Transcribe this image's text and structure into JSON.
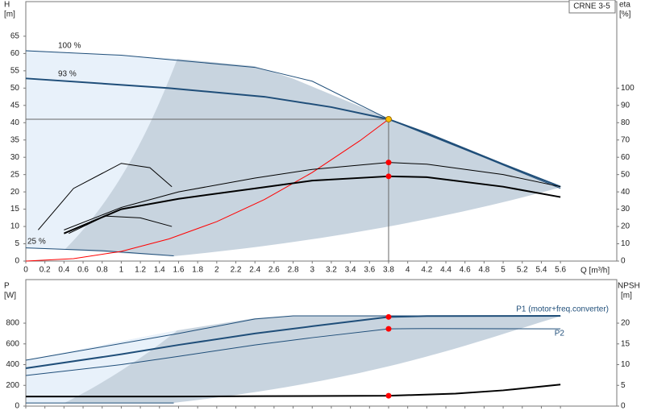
{
  "chart_data": [
    {
      "type": "line",
      "label": "CRNE 3-5",
      "ylabel": "H",
      "yunit": "[m]",
      "y2label": "eta",
      "y2unit": "[%]",
      "xlabel": "Q [m³/h]",
      "xlim": [
        0,
        6.19
      ],
      "ylim": [
        0,
        75
      ],
      "y2lim": [
        0,
        150
      ],
      "xticks": [
        0,
        0.2,
        0.4,
        0.6,
        0.8,
        1,
        1.2,
        1.4,
        1.6,
        1.8,
        2,
        2.2,
        2.4,
        2.6,
        2.8,
        3,
        3.2,
        3.4,
        3.6,
        3.8,
        4,
        4.2,
        4.4,
        4.6,
        4.8,
        5,
        5.2,
        5.4,
        5.6
      ],
      "yticks": [
        0,
        5,
        10,
        15,
        20,
        25,
        30,
        35,
        40,
        45,
        50,
        55,
        60,
        65
      ],
      "y2ticks": [
        0,
        10,
        20,
        30,
        40,
        50,
        60,
        70,
        80,
        90,
        100
      ],
      "series": [
        {
          "name": "100 %",
          "color": "#1f4e79",
          "width": 1,
          "x": [
            0,
            1,
            1.6,
            2.4,
            3,
            3.8,
            4.8,
            5.6
          ],
          "values": [
            60.8,
            59.5,
            58,
            56,
            52,
            41,
            30,
            21
          ]
        },
        {
          "name": "93 %",
          "color": "#1f4e79",
          "width": 2,
          "x": [
            0,
            1.5,
            2.5,
            3.2,
            3.8,
            4.2,
            5,
            5.6
          ],
          "values": [
            52.8,
            50,
            47.5,
            44.5,
            41,
            37,
            28,
            21.5
          ]
        },
        {
          "name": "25 %",
          "color": "#1f4e79",
          "width": 1,
          "x": [
            0,
            0.8,
            1.55
          ],
          "values": [
            3.8,
            3,
            1.5
          ]
        },
        {
          "color": "#ff0000",
          "width": 1,
          "x": [
            0,
            0.5,
            1,
            1.5,
            2,
            2.5,
            3,
            3.5,
            3.8
          ],
          "values": [
            0,
            0.7,
            2.8,
            6.4,
            11.4,
            17.8,
            25.6,
            34.8,
            41
          ]
        },
        {
          "color": "#000000",
          "width": 1,
          "axis": "y2",
          "x": [
            0.4,
            1,
            1.6,
            2.4,
            3,
            3.8,
            4.2,
            5,
            5.6
          ],
          "values": [
            18,
            31,
            40,
            48,
            53,
            57,
            56,
            50,
            43
          ]
        },
        {
          "color": "#000000",
          "width": 2,
          "axis": "y2",
          "x": [
            0.4,
            1,
            1.6,
            2.4,
            3,
            3.8,
            4.2,
            5,
            5.6
          ],
          "values": [
            16,
            30,
            36,
            42,
            46.5,
            49,
            48.5,
            43,
            37
          ]
        },
        {
          "color": "#000000",
          "width": 1,
          "axis": "y2",
          "x": [
            0.13,
            0.5,
            1,
            1.3,
            1.53
          ],
          "values": [
            18,
            42,
            56.5,
            54,
            43
          ]
        },
        {
          "color": "#000000",
          "width": 1,
          "axis": "y2",
          "x": [
            0.45,
            0.83,
            1.2,
            1.53
          ],
          "values": [
            16,
            26,
            25,
            20
          ]
        }
      ],
      "markers": [
        {
          "x": 3.8,
          "y": 41,
          "color": "#ffc000",
          "crosshair": true
        },
        {
          "x": 3.8,
          "y": 57,
          "color": "#ff0000",
          "axis": "y2"
        },
        {
          "x": 3.8,
          "y": 49,
          "color": "#ff0000",
          "axis": "y2"
        }
      ]
    },
    {
      "type": "line",
      "ylabel": "P",
      "yunit": "[W]",
      "y2label": "NPSH",
      "y2unit": "[m]",
      "xlim": [
        0,
        6.19
      ],
      "ylim": [
        0,
        1220
      ],
      "y2lim": [
        0,
        30.5
      ],
      "xticks": [
        0,
        0.2,
        0.4,
        0.6,
        0.8,
        1,
        1.2,
        1.4,
        1.6,
        1.8,
        2,
        2.2,
        2.4,
        2.6,
        2.8,
        3,
        3.2,
        3.4,
        3.6,
        3.8,
        4,
        4.2,
        4.4,
        4.6,
        4.8,
        5,
        5.2,
        5.4,
        5.6
      ],
      "yticks": [
        0,
        200,
        400,
        600,
        800
      ],
      "y2ticks": [
        0,
        5,
        10,
        15,
        20
      ],
      "series": [
        {
          "color": "#1f4e79",
          "width": 1,
          "x": [
            0,
            1.6,
            2.4,
            2.8,
            3.8,
            5.6
          ],
          "values": [
            443,
            700,
            840,
            870,
            870,
            870
          ]
        },
        {
          "name": "P1 (motor+freq.converter)",
          "color": "#1f4e79",
          "width": 2,
          "x": [
            0,
            1,
            1.6,
            2.4,
            3,
            3.8,
            4.2,
            5.6
          ],
          "values": [
            365,
            500,
            590,
            700,
            770,
            860,
            868,
            870
          ]
        },
        {
          "name": "P2",
          "color": "#1f4e79",
          "width": 1,
          "x": [
            0,
            1,
            1.6,
            2.4,
            3,
            3.8,
            4.2,
            5.6
          ],
          "values": [
            295,
            400,
            480,
            590,
            660,
            745,
            748,
            745
          ]
        },
        {
          "color": "#1f4e79",
          "width": 1,
          "x": [
            0,
            1.55
          ],
          "values": [
            30,
            30
          ]
        },
        {
          "color": "#000000",
          "width": 2,
          "axis": "y2",
          "x": [
            0,
            1.5,
            2.5,
            3.8,
            4.5,
            5,
            5.6
          ],
          "values": [
            2.3,
            2.3,
            2.4,
            2.5,
            3,
            3.8,
            5.2
          ]
        }
      ],
      "markers": [
        {
          "x": 3.8,
          "y": 860,
          "color": "#ff0000"
        },
        {
          "x": 3.8,
          "y": 745,
          "color": "#ff0000"
        },
        {
          "x": 3.8,
          "y": 2.5,
          "color": "#ff0000",
          "axis": "y2"
        }
      ]
    }
  ]
}
